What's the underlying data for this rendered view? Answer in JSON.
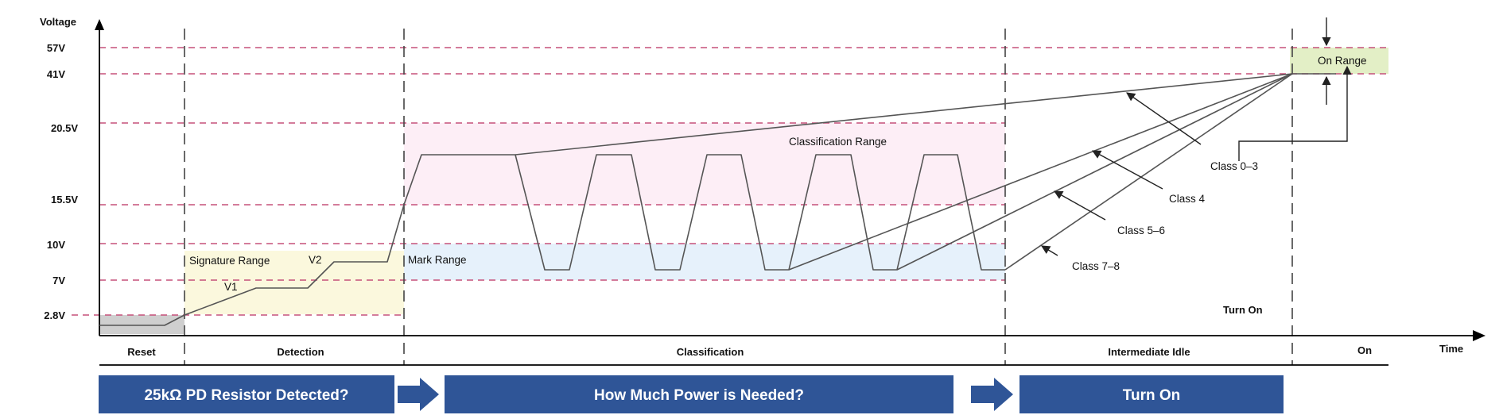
{
  "axes": {
    "y_title": "Voltage",
    "x_title": "Time",
    "voltage_levels": [
      "57V",
      "41V",
      "20.5V",
      "15.5V",
      "10V",
      "7V",
      "2.8V"
    ]
  },
  "phases": [
    "Reset",
    "Detection",
    "Classification",
    "Intermediate Idle",
    "On"
  ],
  "regions": {
    "signature": "Signature Range",
    "mark": "Mark Range",
    "classification": "Classification Range",
    "on": "On Range"
  },
  "waveform_labels": {
    "v1": "V1",
    "v2": "V2",
    "turn_on": "Turn On"
  },
  "class_labels": [
    "Class 0–3",
    "Class 4",
    "Class 5–6",
    "Class 7–8"
  ],
  "flow_boxes": [
    "25kΩ PD Resistor Detected?",
    "How Much Power is Needed?",
    "Turn On"
  ],
  "colors": {
    "box_fill": "#2f5597",
    "signature_fill": "#fbf8dd",
    "mark_fill": "#e6f1fb",
    "classification_fill": "#fdeef6",
    "on_fill": "#e3efc6",
    "reset_fill": "#cfcfcf",
    "dashed_level": "#c5507a"
  }
}
